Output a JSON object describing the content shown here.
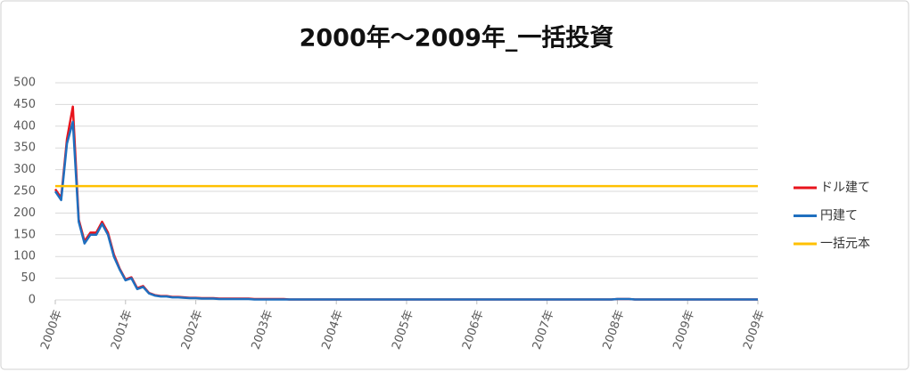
{
  "chart_data": {
    "type": "line",
    "title": "2000年～2009年_一括投資",
    "categories": [
      "2000年",
      null,
      null,
      null,
      null,
      null,
      null,
      null,
      null,
      null,
      null,
      null,
      "2001年",
      null,
      null,
      null,
      null,
      null,
      null,
      null,
      null,
      null,
      null,
      null,
      "2002年",
      null,
      null,
      null,
      null,
      null,
      null,
      null,
      null,
      null,
      null,
      null,
      "2003年",
      null,
      null,
      null,
      null,
      null,
      null,
      null,
      null,
      null,
      null,
      null,
      "2004年",
      null,
      null,
      null,
      null,
      null,
      null,
      null,
      null,
      null,
      null,
      null,
      "2005年",
      null,
      null,
      null,
      null,
      null,
      null,
      null,
      null,
      null,
      null,
      null,
      "2006年",
      null,
      null,
      null,
      null,
      null,
      null,
      null,
      null,
      null,
      null,
      null,
      "2007年",
      null,
      null,
      null,
      null,
      null,
      null,
      null,
      null,
      null,
      null,
      null,
      "2008年",
      null,
      null,
      null,
      null,
      null,
      null,
      null,
      null,
      null,
      null,
      null,
      "2009年",
      null,
      null,
      null,
      null,
      null,
      null,
      null,
      null,
      null,
      null,
      null,
      "2009年"
    ],
    "series": [
      {
        "name": "ドル建て",
        "color": "#e8141c",
        "values": [
          255,
          235,
          370,
          445,
          185,
          135,
          155,
          155,
          180,
          155,
          105,
          72,
          47,
          52,
          27,
          32,
          16,
          11,
          9,
          9,
          7,
          7,
          6,
          5,
          5,
          4,
          4,
          4,
          3,
          3,
          3,
          3,
          3,
          3,
          2,
          2,
          2,
          2,
          2,
          2,
          1,
          1,
          1,
          1,
          1,
          1,
          1,
          1,
          1,
          1,
          1,
          1,
          1,
          1,
          1,
          1,
          1,
          1,
          1,
          1,
          1,
          1,
          1,
          1,
          1,
          1,
          1,
          1,
          1,
          1,
          1,
          1,
          1,
          1,
          1,
          1,
          1,
          1,
          1,
          1,
          1,
          1,
          1,
          1,
          1,
          1,
          1,
          1,
          1,
          1,
          1,
          1,
          1,
          1,
          1,
          1,
          2,
          2,
          2,
          1,
          1,
          1,
          1,
          1,
          1,
          1,
          1,
          1,
          1,
          1,
          1,
          1,
          1,
          1,
          1,
          1,
          1,
          1,
          1,
          1,
          1
        ]
      },
      {
        "name": "円建て",
        "color": "#1f6fbf",
        "values": [
          250,
          230,
          360,
          410,
          180,
          130,
          150,
          150,
          175,
          150,
          100,
          70,
          45,
          50,
          25,
          30,
          15,
          10,
          8,
          8,
          6,
          6,
          5,
          4,
          4,
          3,
          3,
          3,
          2,
          2,
          2,
          2,
          2,
          2,
          1,
          1,
          1,
          1,
          1,
          1,
          1,
          1,
          1,
          1,
          1,
          1,
          1,
          1,
          1,
          1,
          1,
          1,
          1,
          1,
          1,
          1,
          1,
          1,
          1,
          1,
          1,
          1,
          1,
          1,
          1,
          1,
          1,
          1,
          1,
          1,
          1,
          1,
          1,
          1,
          1,
          1,
          1,
          1,
          1,
          1,
          1,
          1,
          1,
          1,
          1,
          1,
          1,
          1,
          1,
          1,
          1,
          1,
          1,
          1,
          1,
          1,
          2,
          2,
          2,
          1,
          1,
          1,
          1,
          1,
          1,
          1,
          1,
          1,
          1,
          1,
          1,
          1,
          1,
          1,
          1,
          1,
          1,
          1,
          1,
          1,
          1
        ]
      },
      {
        "name": "一括元本",
        "color": "#ffc000",
        "values": [
          262,
          262,
          262,
          262,
          262,
          262,
          262,
          262,
          262,
          262,
          262,
          262,
          262,
          262,
          262,
          262,
          262,
          262,
          262,
          262,
          262,
          262,
          262,
          262,
          262,
          262,
          262,
          262,
          262,
          262,
          262,
          262,
          262,
          262,
          262,
          262,
          262,
          262,
          262,
          262,
          262,
          262,
          262,
          262,
          262,
          262,
          262,
          262,
          262,
          262,
          262,
          262,
          262,
          262,
          262,
          262,
          262,
          262,
          262,
          262,
          262,
          262,
          262,
          262,
          262,
          262,
          262,
          262,
          262,
          262,
          262,
          262,
          262,
          262,
          262,
          262,
          262,
          262,
          262,
          262,
          262,
          262,
          262,
          262,
          262,
          262,
          262,
          262,
          262,
          262,
          262,
          262,
          262,
          262,
          262,
          262,
          262,
          262,
          262,
          262,
          262,
          262,
          262,
          262,
          262,
          262,
          262,
          262,
          262,
          262,
          262,
          262,
          262,
          262,
          262,
          262,
          262,
          262,
          262,
          262,
          262
        ]
      }
    ],
    "ylim": [
      0,
      500
    ],
    "yticks": [
      0,
      50,
      100,
      150,
      200,
      250,
      300,
      350,
      400,
      450,
      500
    ],
    "grid": true,
    "legend": "right"
  }
}
